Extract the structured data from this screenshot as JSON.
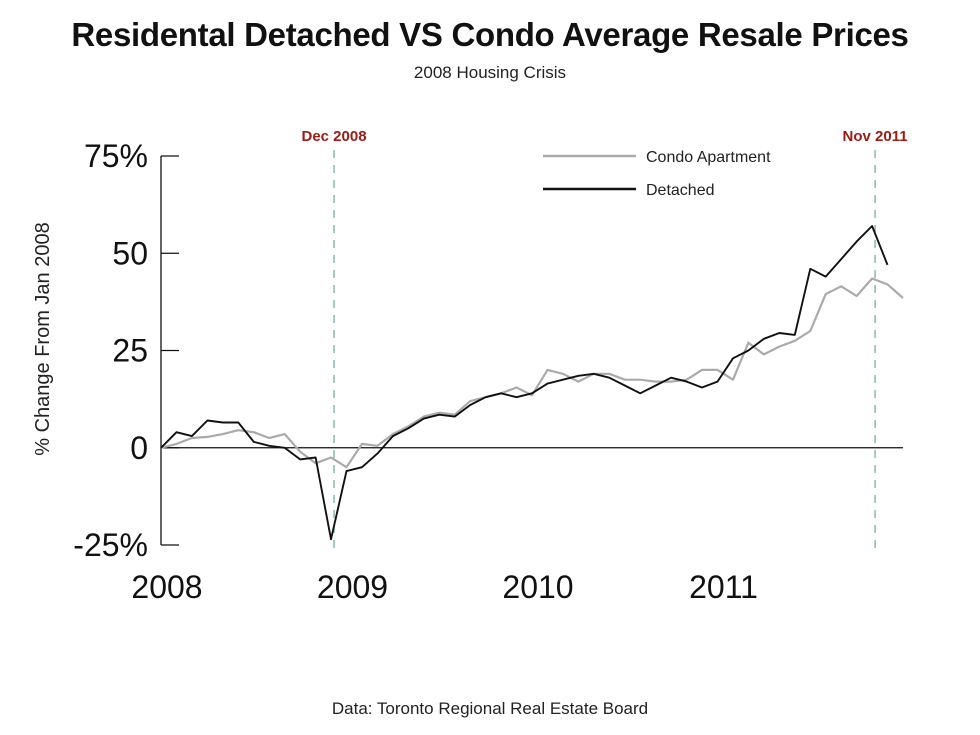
{
  "chart_data": {
    "type": "line",
    "title": "Residental Detached VS Condo Average Resale Prices",
    "subtitle": "2008 Housing Crisis",
    "ylabel": "% Change From Jan 2008",
    "source": "Data: Toronto Regional Real Estate Board",
    "ylim": [
      -25,
      75
    ],
    "xlim": [
      0,
      48
    ],
    "y_ticks": [
      {
        "value": 75,
        "label": "75%"
      },
      {
        "value": 50,
        "label": "50"
      },
      {
        "value": 25,
        "label": "25"
      },
      {
        "value": 0,
        "label": "0"
      },
      {
        "value": -25,
        "label": "-25%"
      }
    ],
    "x_ticks": [
      {
        "value": 0,
        "label": "2008"
      },
      {
        "value": 12,
        "label": "2009"
      },
      {
        "value": 24,
        "label": "2010"
      },
      {
        "value": 36,
        "label": "2011"
      }
    ],
    "annotations": [
      {
        "x": 11,
        "label": "Dec 2008",
        "color": "#9b1c14"
      },
      {
        "x": 46,
        "label": "Nov 2011",
        "color": "#9b1c14"
      }
    ],
    "annotation_line_color": "#7fb5a4",
    "legend_position": "top-right",
    "series": [
      {
        "name": "Condo Apartment",
        "color": "#aaaaaa",
        "values": [
          0,
          1,
          2.5,
          2.8,
          3.5,
          4.5,
          4,
          2.5,
          3.5,
          -1,
          -4,
          -2.5,
          -5,
          1,
          0.5,
          3.5,
          5.5,
          8,
          9,
          8.5,
          12,
          13,
          14,
          15.5,
          13.5,
          20,
          19,
          17,
          19,
          19,
          17.5,
          17.5,
          17,
          17,
          17.5,
          20,
          20,
          17.5,
          27,
          24,
          26,
          27.5,
          30,
          39.5,
          41.5,
          39,
          43.5,
          42,
          38.5
        ]
      },
      {
        "name": "Detached",
        "color": "#111111",
        "values": [
          0,
          4,
          3,
          7,
          6.5,
          6.5,
          1.5,
          0.5,
          0,
          -3,
          -2.5,
          -23.5,
          -6,
          -5,
          -1.5,
          3,
          5,
          7.5,
          8.5,
          8,
          11,
          13,
          14,
          13,
          14,
          16.5,
          17.5,
          18.5,
          19,
          18,
          16,
          14,
          16,
          18,
          17,
          15.5,
          17,
          23,
          25,
          28,
          29.5,
          29,
          46,
          44,
          48.5,
          53,
          57,
          47
        ]
      }
    ]
  }
}
